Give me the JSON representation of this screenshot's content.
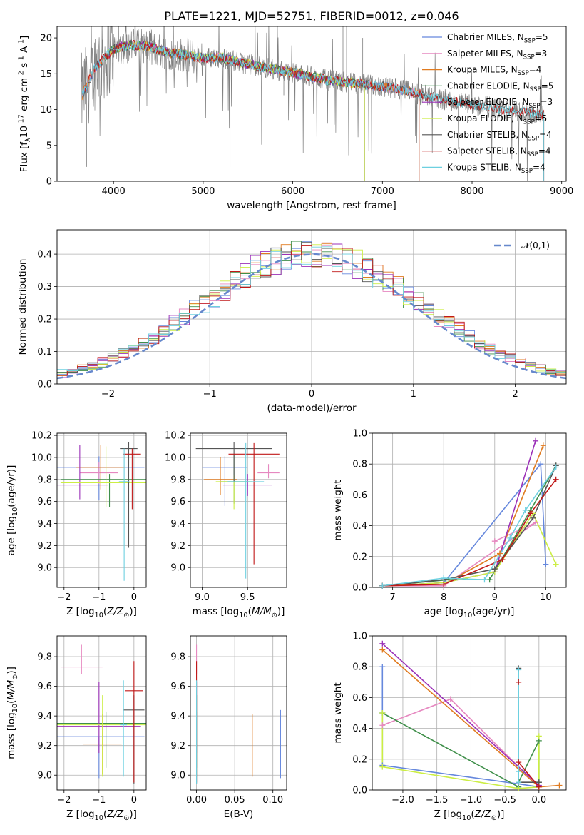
{
  "colors": [
    "#6688dd",
    "#e688c0",
    "#e07b20",
    "#3f8f4a",
    "#9b30b8",
    "#ccee44",
    "#555555",
    "#c01818",
    "#6dd0e0"
  ],
  "chart_data": [
    {
      "type": "line",
      "title": "PLATE=1221, MJD=52751, FIBERID=0012, z=0.046",
      "xlabel": "wavelength [Angstrom, rest frame]",
      "ylabel": "Flux [f$_\\lambda$10$^{-17}$ erg cm$^{-2}$ s$^{-1}$ A$^{-1}$]",
      "xlim": [
        3370,
        9050
      ],
      "ylim": [
        0,
        21.6
      ],
      "xticks": [
        4000,
        5000,
        6000,
        7000,
        8000,
        9000
      ],
      "yticks": [
        0,
        5,
        10,
        15,
        20
      ],
      "grid": false,
      "legend_position": "top-right",
      "observed_spectrum": {
        "color": "#808080",
        "x": [
          3650,
          3800,
          3900,
          4000,
          4200,
          4400,
          4600,
          4800,
          5000,
          5200,
          5400,
          5600,
          5800,
          6000,
          6200,
          6400,
          6600,
          6800,
          7000,
          7200,
          7400,
          7600,
          7800,
          8000,
          8200,
          8400,
          8600,
          8800
        ],
        "y": [
          12.0,
          16.0,
          17.2,
          18.5,
          19.0,
          18.8,
          18.0,
          17.6,
          17.2,
          17.3,
          16.6,
          16.1,
          15.6,
          15.2,
          14.6,
          14.1,
          13.8,
          13.5,
          13.2,
          12.8,
          12.2,
          11.6,
          11.1,
          10.7,
          10.3,
          9.9,
          9.6,
          9.2
        ]
      },
      "series": [
        {
          "name": "Chabrier MILES, N$_{SSP}$=5"
        },
        {
          "name": "Salpeter MILES, N$_{SSP}$=3"
        },
        {
          "name": "Kroupa MILES, N$_{SSP}$=4"
        },
        {
          "name": "Chabrier ELODIE, N$_{SSP}$=5"
        },
        {
          "name": "Salpeter ELODIE, N$_{SSP}$=3"
        },
        {
          "name": "Kroupa ELODIE, N$_{SSP}$=5"
        },
        {
          "name": "Chabrier STELIB, N$_{SSP}$=4"
        },
        {
          "name": "Salpeter STELIB, N$_{SSP}$=4"
        },
        {
          "name": "Kroupa STELIB, N$_{SSP}$=4"
        }
      ],
      "model_ranges": [
        [
          3650,
          7410
        ],
        [
          3650,
          7410
        ],
        [
          3650,
          7410
        ],
        [
          3900,
          6800
        ],
        [
          3900,
          6800
        ],
        [
          3900,
          6800
        ],
        [
          3650,
          8800
        ],
        [
          3650,
          8800
        ],
        [
          3650,
          8800
        ]
      ]
    },
    {
      "type": "histogram",
      "xlabel": "(data-model)/error",
      "ylabel": "Normed distribution",
      "xlim": [
        -2.5,
        2.5
      ],
      "ylim": [
        0,
        0.475
      ],
      "xticks": [
        -2,
        -1,
        0,
        1,
        2
      ],
      "yticks": [
        0.0,
        0.1,
        0.2,
        0.3,
        0.4
      ],
      "grid": true,
      "legend_position": "top-right",
      "reference_curve": {
        "name": "$\\mathcal{N}(0,1)$",
        "style": "dashed",
        "color": "#6688cc"
      },
      "bins": {
        "start": -2.5,
        "width": 0.1,
        "count": 50
      },
      "series_note": "one step histogram per SSP model, colors as in the top panel"
    },
    {
      "type": "scatter",
      "xlabel": "Z [log$_{10}$($Z/Z_\\odot$)]",
      "ylabel": "age  [log$_{10}$($age/yr$)]",
      "xlim": [
        -2.2,
        0.35
      ],
      "ylim": [
        8.82,
        10.22
      ],
      "xticks": [
        -2,
        -1,
        0
      ],
      "yticks": [
        9.0,
        9.2,
        9.4,
        9.6,
        9.8,
        10.0,
        10.2
      ],
      "grid": true,
      "points": [
        {
          "x": -1.0,
          "xerr": 1.3,
          "y": 9.91,
          "yerr_lo": 0.3,
          "yerr_hi": 0.1
        },
        {
          "x": -1.0,
          "xerr": 0.55,
          "y": 9.86,
          "yerr_lo": 0.1,
          "yerr_hi": 0.1
        },
        {
          "x": -0.95,
          "xerr": 0.7,
          "y": 9.91,
          "yerr_lo": 0.2,
          "yerr_hi": 0.2
        },
        {
          "x": -0.7,
          "xerr": 1.4,
          "y": 9.8,
          "yerr_lo": 0.25,
          "yerr_hi": 0.05
        },
        {
          "x": -1.55,
          "xerr": 0.8,
          "y": 9.75,
          "yerr_lo": 0.13,
          "yerr_hi": 0.36
        },
        {
          "x": -0.8,
          "xerr": 1.3,
          "y": 9.77,
          "yerr_lo": 0.22,
          "yerr_hi": 0.33
        },
        {
          "x": -0.15,
          "xerr": 0.25,
          "y": 10.08,
          "yerr_lo": 0.9,
          "yerr_hi": 0.06
        },
        {
          "x": -0.05,
          "xerr": 0.25,
          "y": 10.03,
          "yerr_lo": 0.5,
          "yerr_hi": 0.05
        },
        {
          "x": -0.28,
          "xerr": 0.15,
          "y": 9.78,
          "yerr_lo": 0.9,
          "yerr_hi": 0.3
        }
      ]
    },
    {
      "type": "scatter",
      "xlabel": "mass [log$_{10}$($M/M_\\odot$)]",
      "ylabel": "",
      "xlim": [
        8.87,
        9.93
      ],
      "ylim": [
        8.82,
        10.22
      ],
      "xticks": [
        9.0,
        9.5
      ],
      "yticks": [
        9.0,
        9.2,
        9.4,
        9.6,
        9.8,
        10.0,
        10.2
      ],
      "grid": true,
      "points": [
        {
          "x": 9.25,
          "xerr": 0.25,
          "y": 9.91,
          "yerr_lo": 0.35,
          "yerr_hi": 0.1
        },
        {
          "x": 9.73,
          "xerr": 0.12,
          "y": 9.86,
          "yerr_lo": 0.05,
          "yerr_hi": 0.08
        },
        {
          "x": 9.2,
          "xerr": 0.18,
          "y": 9.8,
          "yerr_lo": 0.14,
          "yerr_hi": 0.2
        },
        {
          "x": 9.35,
          "xerr": 0.15,
          "y": 9.78,
          "yerr_lo": 0.2,
          "yerr_hi": 0.25
        },
        {
          "x": 9.5,
          "xerr": 0.27,
          "y": 9.75,
          "yerr_lo": 0.1,
          "yerr_hi": 0.1
        },
        {
          "x": 9.35,
          "xerr": 0.2,
          "y": 9.78,
          "yerr_lo": 0.25,
          "yerr_hi": 0.06
        },
        {
          "x": 9.35,
          "xerr": 0.42,
          "y": 10.08,
          "yerr_lo": 0.3,
          "yerr_hi": 0.06
        },
        {
          "x": 9.57,
          "xerr": 0.28,
          "y": 10.03,
          "yerr_lo": 1.0,
          "yerr_hi": 0.1
        },
        {
          "x": 9.48,
          "xerr": 0.2,
          "y": 9.78,
          "yerr_lo": 0.88,
          "yerr_hi": 0.35
        }
      ]
    },
    {
      "type": "line",
      "xlabel": "age  [log$_{10}$($age/yr$)]",
      "ylabel": "mass weight",
      "xlim": [
        6.6,
        10.4
      ],
      "ylim": [
        0,
        1.0
      ],
      "xticks": [
        7,
        8,
        9,
        10
      ],
      "yticks": [
        0.0,
        0.2,
        0.4,
        0.6,
        0.8,
        1.0
      ],
      "grid": true,
      "series": [
        {
          "x": [
            6.8,
            8.0,
            9.9,
            10.0
          ],
          "y": [
            0.01,
            0.03,
            0.8,
            0.15
          ]
        },
        {
          "x": [
            6.8,
            8.0,
            9.8,
            9.0
          ],
          "y": [
            0.01,
            0.01,
            0.42,
            0.3
          ]
        },
        {
          "x": [
            6.8,
            8.0,
            9.1,
            9.95
          ],
          "y": [
            0.01,
            0.02,
            0.22,
            0.92
          ]
        },
        {
          "x": [
            6.8,
            8.1,
            8.9,
            9.7,
            10.2
          ],
          "y": [
            0.01,
            0.05,
            0.05,
            0.5,
            0.79
          ]
        },
        {
          "x": [
            6.8,
            8.0,
            9.0,
            9.8
          ],
          "y": [
            0.01,
            0.03,
            0.1,
            0.95
          ]
        },
        {
          "x": [
            6.8,
            8.0,
            9.0,
            9.75,
            10.2
          ],
          "y": [
            0.01,
            0.03,
            0.1,
            0.48,
            0.15
          ]
        },
        {
          "x": [
            6.8,
            8.0,
            9.0,
            9.75,
            10.2
          ],
          "y": [
            0.01,
            0.05,
            0.12,
            0.45,
            0.79
          ]
        },
        {
          "x": [
            6.8,
            8.0,
            9.15,
            9.7,
            10.2
          ],
          "y": [
            0.01,
            0.02,
            0.18,
            0.48,
            0.7
          ]
        },
        {
          "x": [
            6.8,
            8.0,
            8.8,
            9.3,
            9.6,
            10.2
          ],
          "y": [
            0.01,
            0.06,
            0.05,
            0.32,
            0.5,
            0.78
          ]
        }
      ]
    },
    {
      "type": "scatter",
      "xlabel": "Z [log$_{10}$($Z/Z_\\odot$)]",
      "ylabel": "mass [log$_{10}$($M/M_\\odot$)]",
      "xlim": [
        -2.2,
        0.35
      ],
      "ylim": [
        8.9,
        9.94
      ],
      "xticks": [
        -2,
        -1,
        0
      ],
      "yticks": [
        9.0,
        9.2,
        9.4,
        9.6,
        9.8
      ],
      "grid": true,
      "points": [
        {
          "x": -1.0,
          "xerr": 1.3,
          "y": 9.26,
          "yerr_lo": 0.28,
          "yerr_hi": 0.0
        },
        {
          "x": -1.5,
          "xerr": 0.6,
          "y": 9.73,
          "yerr_lo": 0.05,
          "yerr_hi": 0.15
        },
        {
          "x": -0.9,
          "xerr": 0.55,
          "y": 9.21,
          "yerr_lo": 0.2,
          "yerr_hi": 0.2
        },
        {
          "x": -0.8,
          "xerr": 1.4,
          "y": 9.35,
          "yerr_lo": 0.3,
          "yerr_hi": 0.08
        },
        {
          "x": -1.0,
          "xerr": 1.2,
          "y": 9.33,
          "yerr_lo": 0.18,
          "yerr_hi": 0.3
        },
        {
          "x": -0.9,
          "xerr": 1.3,
          "y": 9.34,
          "yerr_lo": 0.35,
          "yerr_hi": 0.2
        },
        {
          "x": 0.0,
          "xerr": 0.3,
          "y": 9.44,
          "yerr_lo": 0.5,
          "yerr_hi": 0.1
        },
        {
          "x": 0.0,
          "xerr": 0.25,
          "y": 9.57,
          "yerr_lo": 0.62,
          "yerr_hi": 0.2
        },
        {
          "x": -0.3,
          "xerr": 0.1,
          "y": 9.34,
          "yerr_lo": 0.35,
          "yerr_hi": 0.3
        }
      ]
    },
    {
      "type": "scatter",
      "xlabel": "E(B-V)",
      "ylabel": "",
      "xlim": [
        -0.008,
        0.118
      ],
      "ylim": [
        8.9,
        9.94
      ],
      "xticks": [
        0.0,
        0.05,
        0.1
      ],
      "yticks": [
        9.0,
        9.2,
        9.4,
        9.6,
        9.8
      ],
      "grid": true,
      "points": [
        {
          "x": 0.11,
          "y": 9.26,
          "yerr_lo": 0.28,
          "yerr_hi": 0.18
        },
        {
          "x": 0.0,
          "y": 9.73,
          "yerr_lo": 0.05,
          "yerr_hi": 0.15
        },
        {
          "x": 0.073,
          "y": 9.21,
          "yerr_lo": 0.22,
          "yerr_hi": 0.2
        },
        {
          "x": 0.0,
          "y": 9.35,
          "yerr_lo": 0.3,
          "yerr_hi": 0.08
        },
        {
          "x": 0.0,
          "y": 9.33,
          "yerr_lo": 0.18,
          "yerr_hi": 0.3
        },
        {
          "x": 0.0,
          "y": 9.34,
          "yerr_lo": 0.35,
          "yerr_hi": 0.2
        },
        {
          "x": 0.0,
          "y": 9.44,
          "yerr_lo": 0.5,
          "yerr_hi": 0.1
        },
        {
          "x": 0.0,
          "y": 9.57,
          "yerr_lo": 0.62,
          "yerr_hi": 0.2
        },
        {
          "x": 0.0,
          "y": 9.34,
          "yerr_lo": 0.4,
          "yerr_hi": 0.3
        }
      ]
    },
    {
      "type": "line",
      "xlabel": "Z [log$_{10}$($Z/Z_\\odot$)]",
      "ylabel": "mass weight",
      "xlim": [
        -2.45,
        0.4
      ],
      "ylim": [
        0,
        1.0
      ],
      "xticks": [
        -2.0,
        -1.5,
        -1.0,
        -0.5,
        0.0
      ],
      "yticks": [
        0.0,
        0.2,
        0.4,
        0.6,
        0.8,
        1.0
      ],
      "grid": true,
      "series": [
        {
          "x": [
            -2.3,
            -2.3,
            -2.3,
            -0.3,
            0.0
          ],
          "y": [
            0.8,
            0.5,
            0.16,
            0.04,
            0.02
          ]
        },
        {
          "x": [
            -2.3,
            -1.3,
            0.0
          ],
          "y": [
            0.42,
            0.59,
            0.02
          ]
        },
        {
          "x": [
            -2.3,
            0.0,
            0.3
          ],
          "y": [
            0.91,
            0.02,
            0.03
          ]
        },
        {
          "x": [
            -2.3,
            -0.3,
            -0.3,
            0.0,
            0.0
          ],
          "y": [
            0.5,
            0.02,
            0.05,
            0.32,
            0.05
          ]
        },
        {
          "x": [
            -2.3,
            0.0
          ],
          "y": [
            0.95,
            0.03
          ]
        },
        {
          "x": [
            -2.3,
            -2.3,
            -0.3,
            0.0,
            0.0
          ],
          "y": [
            0.5,
            0.15,
            0.01,
            0.02,
            0.35
          ]
        },
        {
          "x": [
            -0.3,
            -0.3,
            0.0
          ],
          "y": [
            0.79,
            0.05,
            0.05
          ]
        },
        {
          "x": [
            -0.3,
            -0.3,
            0.0
          ],
          "y": [
            0.7,
            0.18,
            0.02
          ]
        },
        {
          "x": [
            -0.3,
            -0.3,
            -0.3
          ],
          "y": [
            0.78,
            0.12,
            0.05
          ]
        }
      ]
    }
  ]
}
